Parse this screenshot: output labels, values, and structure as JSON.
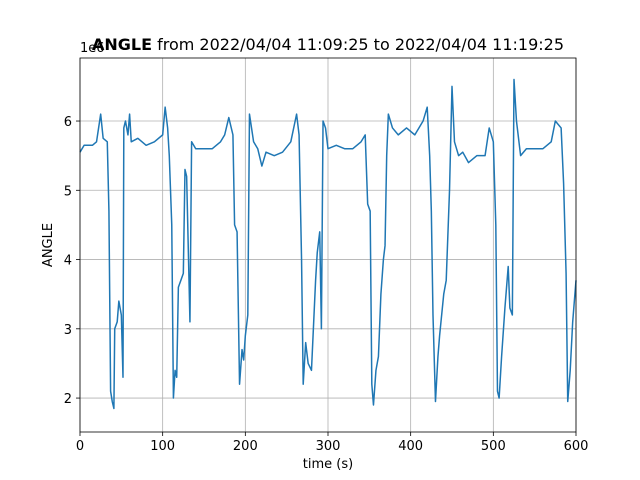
{
  "chart_data": {
    "type": "line",
    "title_bold": "ANGLE",
    "title_rest": "from 2022/04/04 11:09:25 to 2022/04/04 11:19:25",
    "xlabel": "time (s)",
    "ylabel": "ANGLE",
    "y_offset_label": "1e6",
    "x": [
      0,
      5,
      15,
      20,
      25,
      28,
      33,
      35,
      37,
      39,
      41,
      42,
      45,
      47,
      50,
      52,
      53,
      55,
      58,
      60,
      62,
      70,
      80,
      90,
      100,
      103,
      106,
      108,
      111,
      113,
      115,
      117,
      119,
      122,
      125,
      127,
      129,
      133,
      135,
      140,
      150,
      160,
      170,
      175,
      180,
      185,
      187,
      190,
      193,
      196,
      198,
      200,
      203,
      205,
      210,
      215,
      220,
      225,
      235,
      245,
      255,
      262,
      265,
      268,
      270,
      273,
      276,
      280,
      285,
      287,
      290,
      292,
      294,
      297,
      300,
      310,
      320,
      330,
      340,
      345,
      348,
      351,
      353,
      355,
      358,
      361,
      364,
      367,
      369,
      371,
      373,
      378,
      385,
      395,
      405,
      415,
      420,
      423,
      425,
      427,
      430,
      433,
      435,
      440,
      443,
      447,
      450,
      453,
      458,
      463,
      470,
      480,
      490,
      495,
      500,
      503,
      505,
      507,
      510,
      514,
      518,
      520,
      523,
      525,
      528,
      533,
      540,
      550,
      560,
      570,
      575,
      582,
      585,
      588,
      590,
      593,
      596,
      600
    ],
    "series": [
      {
        "name": "ANGLE",
        "color": "#1f77b4",
        "values": [
          5.55,
          5.65,
          5.65,
          5.7,
          6.1,
          5.75,
          5.7,
          4.7,
          2.1,
          1.95,
          1.85,
          3.0,
          3.1,
          3.4,
          3.2,
          2.3,
          5.9,
          6.0,
          5.8,
          6.1,
          5.7,
          5.75,
          5.65,
          5.7,
          5.8,
          6.2,
          5.9,
          5.5,
          4.5,
          2.0,
          2.4,
          2.3,
          3.6,
          3.7,
          3.8,
          5.3,
          5.2,
          3.1,
          5.7,
          5.6,
          5.6,
          5.6,
          5.7,
          5.8,
          6.05,
          5.8,
          4.5,
          4.4,
          2.2,
          2.7,
          2.55,
          2.9,
          3.2,
          6.1,
          5.7,
          5.6,
          5.35,
          5.55,
          5.5,
          5.55,
          5.7,
          6.1,
          5.8,
          4.0,
          2.2,
          2.8,
          2.5,
          2.4,
          3.7,
          4.1,
          4.4,
          3.0,
          6.0,
          5.9,
          5.6,
          5.65,
          5.6,
          5.6,
          5.7,
          5.8,
          4.8,
          4.7,
          2.2,
          1.9,
          2.4,
          2.6,
          3.5,
          4.0,
          4.2,
          5.5,
          6.1,
          5.9,
          5.8,
          5.9,
          5.8,
          6.0,
          6.2,
          5.5,
          4.7,
          3.2,
          1.95,
          2.6,
          2.9,
          3.5,
          3.7,
          5.0,
          6.5,
          5.7,
          5.5,
          5.55,
          5.4,
          5.5,
          5.5,
          5.9,
          5.7,
          4.5,
          2.1,
          2.0,
          2.6,
          3.3,
          3.9,
          3.3,
          3.2,
          6.6,
          6.0,
          5.5,
          5.6,
          5.6,
          5.6,
          5.7,
          6.0,
          5.9,
          5.1,
          3.8,
          1.95,
          2.4,
          3.1,
          3.7
        ]
      }
    ],
    "xlim": [
      0,
      600
    ],
    "xticks": [
      0,
      100,
      200,
      300,
      400,
      500,
      600
    ],
    "ylim": [
      1.51,
      6.91
    ],
    "yticks": [
      2,
      3,
      4,
      5,
      6
    ],
    "grid": true
  }
}
